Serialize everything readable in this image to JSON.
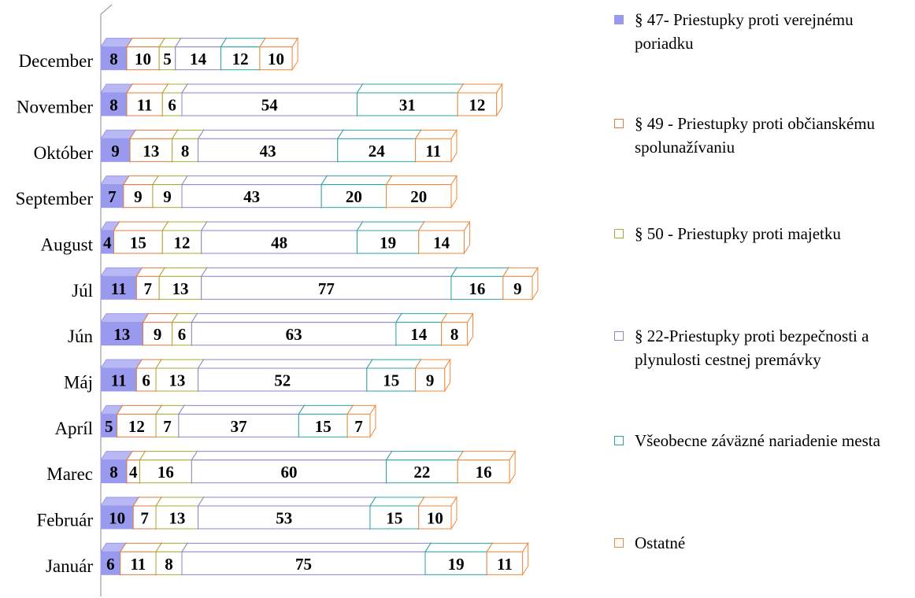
{
  "chart_data": {
    "type": "bar",
    "orientation": "horizontal",
    "stacked": true,
    "three_d": true,
    "categories": [
      "Január",
      "Február",
      "Marec",
      "Apríl",
      "Máj",
      "Jún",
      "Júl",
      "August",
      "September",
      "Október",
      "November",
      "December"
    ],
    "series": [
      {
        "name": "§ 47- Priestupky proti verejnému poriadku",
        "color": "#9999ee",
        "filled": true,
        "values": [
          6,
          10,
          8,
          5,
          11,
          13,
          11,
          4,
          7,
          9,
          8,
          8
        ]
      },
      {
        "name": "§ 49 - Priestupky proti občianskému spolunažívaniu",
        "color": "#e07a3c",
        "filled": false,
        "values": [
          11,
          7,
          4,
          12,
          6,
          9,
          7,
          15,
          9,
          13,
          11,
          10
        ]
      },
      {
        "name": "§ 50 - Priestupky proti majetku",
        "color": "#a8a832",
        "filled": false,
        "values": [
          8,
          13,
          16,
          7,
          13,
          6,
          13,
          12,
          9,
          8,
          6,
          5
        ]
      },
      {
        "name": "§ 22-Priestupky proti bezpečnosti a plynulosti cestnej premávky",
        "color": "#8a85cc",
        "filled": false,
        "values": [
          75,
          53,
          60,
          37,
          52,
          63,
          77,
          48,
          43,
          43,
          54,
          14
        ]
      },
      {
        "name": "Všeobecne záväzné nariadenie mesta",
        "color": "#2aa3a0",
        "filled": false,
        "values": [
          19,
          15,
          22,
          15,
          15,
          14,
          16,
          19,
          20,
          24,
          31,
          12
        ]
      },
      {
        "name": "Ostatné",
        "color": "#f0883a",
        "filled": false,
        "values": [
          11,
          10,
          16,
          7,
          9,
          8,
          9,
          14,
          20,
          11,
          12,
          10
        ]
      }
    ],
    "category_order": "bottom-to-top",
    "data_labels": true,
    "legend": "right",
    "grid": false
  }
}
